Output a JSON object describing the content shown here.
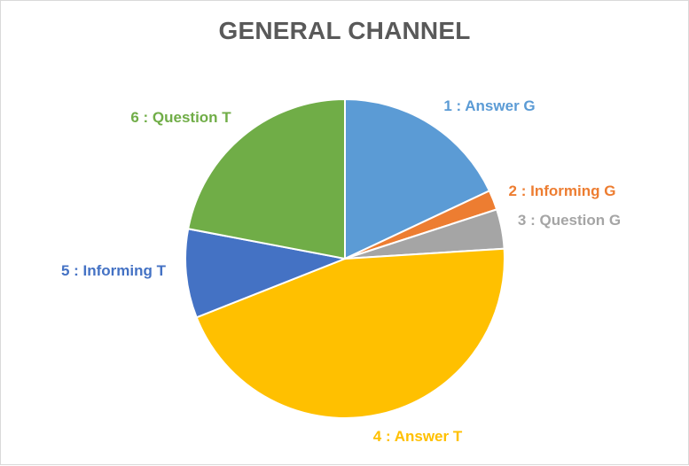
{
  "chart_data": {
    "type": "pie",
    "title": "GENERAL CHANNEL",
    "categories": [
      "1 : Answer G",
      "2 : Informing G",
      "3 : Question G",
      "4 : Answer T",
      "5 : Informing T",
      "6 : Question T"
    ],
    "values": [
      18,
      2,
      4,
      45,
      9,
      22
    ],
    "colors": [
      "#5b9bd5",
      "#ed7d31",
      "#a5a5a5",
      "#ffc000",
      "#4472c4",
      "#70ad47"
    ],
    "start_angle_deg": 0,
    "direction": "clockwise",
    "data_labels": "category-name-outside"
  }
}
